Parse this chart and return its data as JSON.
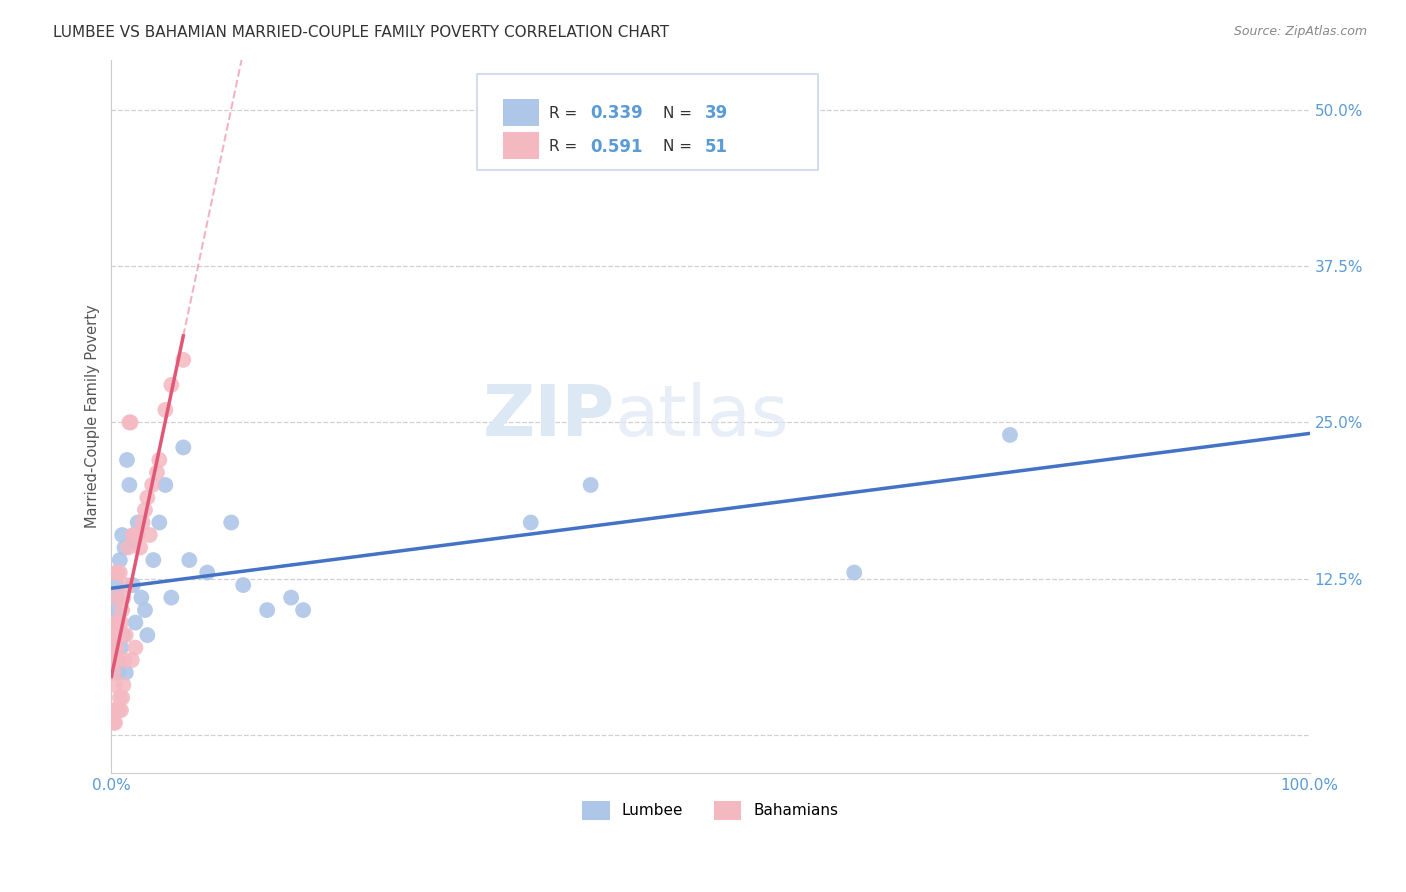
{
  "title": "LUMBEE VS BAHAMIAN MARRIED-COUPLE FAMILY POVERTY CORRELATION CHART",
  "source": "Source: ZipAtlas.com",
  "ylabel": "Married-Couple Family Poverty",
  "xlim": [
    0,
    1.0
  ],
  "ylim": [
    -0.03,
    0.54
  ],
  "lumbee_R": 0.339,
  "lumbee_N": 39,
  "bahamian_R": 0.591,
  "bahamian_N": 51,
  "lumbee_color": "#aec6e8",
  "bahamian_color": "#f4b8c1",
  "lumbee_line_color": "#4472c4",
  "bahamian_line_color": "#e05878",
  "background_color": "#ffffff",
  "grid_color": "#d0d0d0",
  "watermark_color": "#dde8f5",
  "lumbee_x": [
    0.002,
    0.003,
    0.003,
    0.004,
    0.004,
    0.005,
    0.005,
    0.006,
    0.007,
    0.008,
    0.009,
    0.01,
    0.011,
    0.013,
    0.015,
    0.018,
    0.02,
    0.022,
    0.025,
    0.028,
    0.03,
    0.035,
    0.04,
    0.045,
    0.05,
    0.06,
    0.065,
    0.08,
    0.1,
    0.11,
    0.13,
    0.15,
    0.16,
    0.35,
    0.4,
    0.62,
    0.75,
    0.012,
    0.019
  ],
  "lumbee_y": [
    0.05,
    0.1,
    0.07,
    0.12,
    0.09,
    0.06,
    0.11,
    0.05,
    0.14,
    0.07,
    0.16,
    0.08,
    0.15,
    0.22,
    0.2,
    0.12,
    0.09,
    0.17,
    0.11,
    0.1,
    0.08,
    0.14,
    0.17,
    0.2,
    0.11,
    0.23,
    0.14,
    0.13,
    0.17,
    0.12,
    0.1,
    0.11,
    0.1,
    0.17,
    0.2,
    0.13,
    0.24,
    0.05,
    0.155
  ],
  "bahamian_x": [
    0.001,
    0.001,
    0.001,
    0.002,
    0.002,
    0.002,
    0.003,
    0.003,
    0.003,
    0.003,
    0.003,
    0.004,
    0.004,
    0.004,
    0.005,
    0.005,
    0.005,
    0.005,
    0.006,
    0.006,
    0.007,
    0.007,
    0.007,
    0.008,
    0.008,
    0.009,
    0.009,
    0.01,
    0.01,
    0.011,
    0.012,
    0.013,
    0.014,
    0.015,
    0.016,
    0.017,
    0.018,
    0.019,
    0.02,
    0.022,
    0.024,
    0.026,
    0.028,
    0.03,
    0.032,
    0.034,
    0.038,
    0.04,
    0.045,
    0.05,
    0.06
  ],
  "bahamian_y": [
    0.02,
    0.06,
    0.08,
    0.01,
    0.05,
    0.07,
    0.01,
    0.04,
    0.06,
    0.09,
    0.11,
    0.02,
    0.07,
    0.13,
    0.02,
    0.06,
    0.09,
    0.13,
    0.02,
    0.08,
    0.03,
    0.08,
    0.13,
    0.02,
    0.09,
    0.03,
    0.1,
    0.04,
    0.11,
    0.06,
    0.08,
    0.12,
    0.15,
    0.25,
    0.25,
    0.06,
    0.16,
    0.16,
    0.07,
    0.16,
    0.15,
    0.17,
    0.18,
    0.19,
    0.16,
    0.2,
    0.21,
    0.22,
    0.26,
    0.28,
    0.3
  ]
}
